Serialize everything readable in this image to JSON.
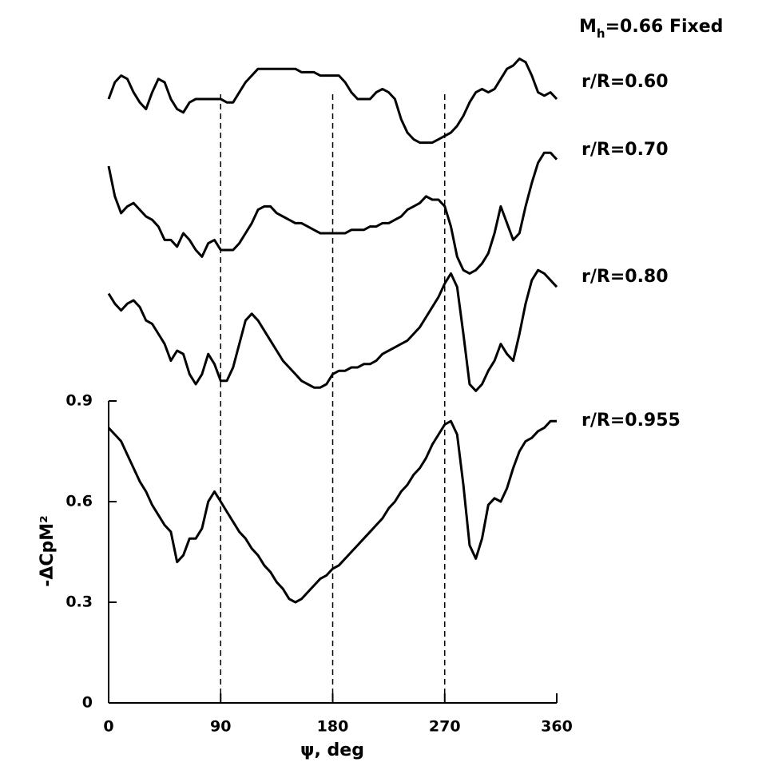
{
  "chart_data": {
    "type": "line",
    "title": {
      "base": "M",
      "subscript": "h",
      "text": "=0.66 Fixed"
    },
    "x_label": "ψ, deg",
    "y_label": "-ΔCpM²",
    "xlim": [
      0,
      360
    ],
    "xticks": [
      0,
      90,
      180,
      270,
      360
    ],
    "ylim": [
      0,
      2.1
    ],
    "yticks": [
      0,
      0.3,
      0.6,
      0.9
    ],
    "vlines": [
      90,
      180,
      270
    ],
    "x": [
      0,
      5,
      10,
      15,
      20,
      25,
      30,
      35,
      40,
      45,
      50,
      55,
      60,
      65,
      70,
      75,
      80,
      85,
      90,
      95,
      100,
      105,
      110,
      115,
      120,
      125,
      130,
      135,
      140,
      145,
      150,
      155,
      160,
      165,
      170,
      175,
      180,
      185,
      190,
      195,
      200,
      205,
      210,
      215,
      220,
      225,
      230,
      235,
      240,
      245,
      250,
      255,
      260,
      265,
      270,
      275,
      280,
      285,
      290,
      295,
      300,
      305,
      310,
      315,
      320,
      325,
      330,
      335,
      340,
      345,
      350,
      355,
      360
    ],
    "series": [
      {
        "name": "r/R=0.60",
        "color": "#000000",
        "values": [
          1.8,
          1.85,
          1.87,
          1.86,
          1.82,
          1.79,
          1.77,
          1.82,
          1.86,
          1.85,
          1.8,
          1.77,
          1.76,
          1.79,
          1.8,
          1.8,
          1.8,
          1.8,
          1.8,
          1.79,
          1.79,
          1.82,
          1.85,
          1.87,
          1.89,
          1.89,
          1.89,
          1.89,
          1.89,
          1.89,
          1.89,
          1.88,
          1.88,
          1.88,
          1.87,
          1.87,
          1.87,
          1.87,
          1.85,
          1.82,
          1.8,
          1.8,
          1.8,
          1.82,
          1.83,
          1.82,
          1.8,
          1.74,
          1.7,
          1.68,
          1.67,
          1.67,
          1.67,
          1.68,
          1.69,
          1.7,
          1.72,
          1.75,
          1.79,
          1.82,
          1.83,
          1.82,
          1.83,
          1.86,
          1.89,
          1.9,
          1.92,
          1.91,
          1.87,
          1.82,
          1.81,
          1.82,
          1.8
        ]
      },
      {
        "name": "r/R=0.70",
        "color": "#000000",
        "values": [
          1.6,
          1.51,
          1.46,
          1.48,
          1.49,
          1.47,
          1.45,
          1.44,
          1.42,
          1.38,
          1.38,
          1.36,
          1.4,
          1.38,
          1.35,
          1.33,
          1.37,
          1.38,
          1.35,
          1.35,
          1.35,
          1.37,
          1.4,
          1.43,
          1.47,
          1.48,
          1.48,
          1.46,
          1.45,
          1.44,
          1.43,
          1.43,
          1.42,
          1.41,
          1.4,
          1.4,
          1.4,
          1.4,
          1.4,
          1.41,
          1.41,
          1.41,
          1.42,
          1.42,
          1.43,
          1.43,
          1.44,
          1.45,
          1.47,
          1.48,
          1.49,
          1.51,
          1.5,
          1.5,
          1.48,
          1.42,
          1.33,
          1.29,
          1.28,
          1.29,
          1.31,
          1.34,
          1.4,
          1.48,
          1.43,
          1.38,
          1.4,
          1.48,
          1.55,
          1.61,
          1.64,
          1.64,
          1.62
        ]
      },
      {
        "name": "r/R=0.80",
        "color": "#000000",
        "values": [
          1.22,
          1.19,
          1.17,
          1.19,
          1.2,
          1.18,
          1.14,
          1.13,
          1.1,
          1.07,
          1.02,
          1.05,
          1.04,
          0.98,
          0.95,
          0.98,
          1.04,
          1.01,
          0.96,
          0.96,
          1.0,
          1.07,
          1.14,
          1.16,
          1.14,
          1.11,
          1.08,
          1.05,
          1.02,
          1.0,
          0.98,
          0.96,
          0.95,
          0.94,
          0.94,
          0.95,
          0.98,
          0.99,
          0.99,
          1.0,
          1.0,
          1.01,
          1.01,
          1.02,
          1.04,
          1.05,
          1.06,
          1.07,
          1.08,
          1.1,
          1.12,
          1.15,
          1.18,
          1.21,
          1.25,
          1.28,
          1.24,
          1.1,
          0.95,
          0.93,
          0.95,
          0.99,
          1.02,
          1.07,
          1.04,
          1.02,
          1.1,
          1.19,
          1.26,
          1.29,
          1.28,
          1.26,
          1.24
        ]
      },
      {
        "name": "r/R=0.955",
        "color": "#000000",
        "values": [
          0.82,
          0.8,
          0.78,
          0.74,
          0.7,
          0.66,
          0.63,
          0.59,
          0.56,
          0.53,
          0.51,
          0.42,
          0.44,
          0.49,
          0.49,
          0.52,
          0.6,
          0.63,
          0.6,
          0.57,
          0.54,
          0.51,
          0.49,
          0.46,
          0.44,
          0.41,
          0.39,
          0.36,
          0.34,
          0.31,
          0.3,
          0.31,
          0.33,
          0.35,
          0.37,
          0.38,
          0.4,
          0.41,
          0.43,
          0.45,
          0.47,
          0.49,
          0.51,
          0.53,
          0.55,
          0.58,
          0.6,
          0.63,
          0.65,
          0.68,
          0.7,
          0.73,
          0.77,
          0.8,
          0.83,
          0.84,
          0.8,
          0.65,
          0.47,
          0.43,
          0.49,
          0.59,
          0.61,
          0.6,
          0.64,
          0.7,
          0.75,
          0.78,
          0.79,
          0.81,
          0.82,
          0.84,
          0.84
        ]
      }
    ]
  }
}
